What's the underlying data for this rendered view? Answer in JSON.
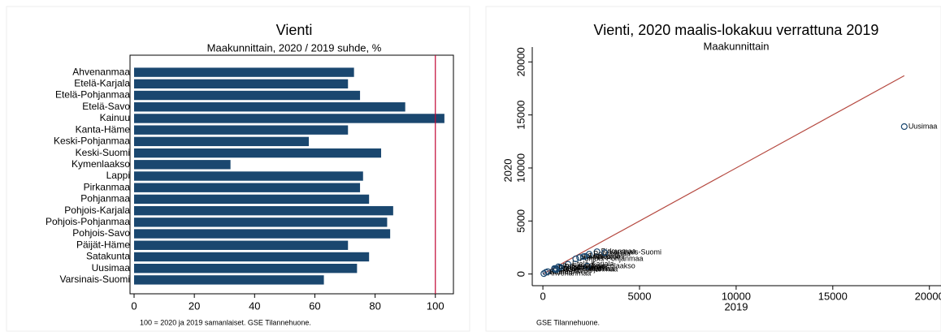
{
  "chart_data": [
    {
      "type": "barh",
      "title": "Vienti",
      "subtitle": "Maakunnittain, 2020 / 2019 suhde, %",
      "categories": [
        "Ahvenanmaa",
        "Etelä-Karjala",
        "Etelä-Pohjanmaa",
        "Etelä-Savo",
        "Kainuu",
        "Kanta-Häme",
        "Keski-Pohjanmaa",
        "Keski-Suomi",
        "Kymenlaakso",
        "Lappi",
        "Pirkanmaa",
        "Pohjanmaa",
        "Pohjois-Karjala",
        "Pohjois-Pohjanmaa",
        "Pohjois-Savo",
        "Päijät-Häme",
        "Satakunta",
        "Uusimaa",
        "Varsinais-Suomi"
      ],
      "values": [
        73,
        71,
        75,
        90,
        103,
        71,
        58,
        82,
        32,
        76,
        75,
        78,
        86,
        84,
        85,
        71,
        78,
        74,
        63
      ],
      "color": "#1a476f",
      "xlim": [
        0,
        106
      ],
      "xticks": [
        0,
        20,
        40,
        60,
        80,
        100
      ],
      "reference_x": 100,
      "reference_color": "#c10534",
      "note": "100 = 2020 ja 2019 samanlaiset. GSE Tilannehuone."
    },
    {
      "type": "scatter",
      "title": "Vienti, 2020 maalis-lokakuu verrattuna 2019",
      "subtitle": "Maakunnittain",
      "x_label": "2019",
      "y_label": "2020",
      "labels": [
        "Ahvenanmaa",
        "Etelä-Karjala",
        "Etelä-Pohjanmaa",
        "Etelä-Savo",
        "Kainuu",
        "Kanta-Häme",
        "Keski-Pohjanmaa",
        "Keski-Suomi",
        "Kymenlaakso",
        "Lappi",
        "Pirkanmaa",
        "Pohjanmaa",
        "Pohjois-Karjala",
        "Pohjois-Pohjanmaa",
        "Pohjois-Savo",
        "Päijät-Häme",
        "Satakunta",
        "Uusimaa",
        "Varsinais-Suomi"
      ],
      "x": [
        50,
        1300,
        600,
        250,
        150,
        700,
        700,
        1900,
        2300,
        2200,
        2800,
        2400,
        600,
        1700,
        800,
        900,
        2100,
        18700,
        3200
      ],
      "values": [
        36,
        920,
        450,
        225,
        155,
        500,
        410,
        1560,
        740,
        1670,
        2100,
        1870,
        520,
        1430,
        680,
        640,
        1640,
        13900,
        2020
      ],
      "color": "#1a476f",
      "xlim": [
        -550,
        20600
      ],
      "ylim": [
        -1100,
        21400
      ],
      "xticks": [
        0,
        5000,
        10000,
        15000,
        20000
      ],
      "yticks": [
        0,
        5000,
        10000,
        15000,
        20000
      ],
      "reference_line": {
        "x": [
          0,
          18700
        ],
        "y": [
          0,
          18700
        ],
        "color": "#b5483f"
      },
      "note": "GSE Tilannehuone."
    }
  ]
}
